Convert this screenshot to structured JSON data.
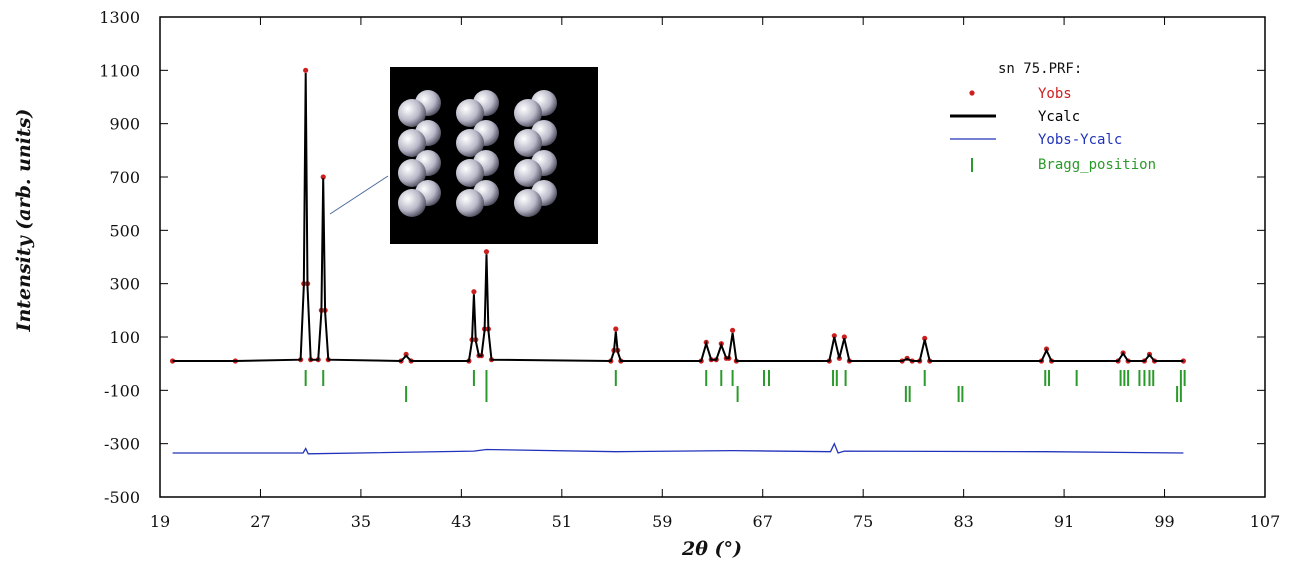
{
  "chart_data": {
    "type": "line",
    "xlabel": "2θ (°)",
    "ylabel": "Intensity (arb. units)",
    "legend_title": "sn 75.PRF:",
    "xlim": [
      19,
      107
    ],
    "xticks": [
      19,
      27,
      35,
      43,
      51,
      59,
      67,
      75,
      83,
      91,
      99,
      107
    ],
    "ylim": [
      -500,
      1300
    ],
    "yticks": [
      -500,
      -300,
      -100,
      100,
      300,
      500,
      700,
      900,
      1100,
      1300
    ],
    "series": [
      {
        "name": "Yobs",
        "color": "#cc2020",
        "style": "points",
        "x": [
          20,
          25,
          30.2,
          30.45,
          30.6,
          30.75,
          31.0,
          31.6,
          31.85,
          32.0,
          32.15,
          32.4,
          38.2,
          38.6,
          39.0,
          43.6,
          43.85,
          44.0,
          44.15,
          44.4,
          44.6,
          44.85,
          45.0,
          45.15,
          45.4,
          54.9,
          55.15,
          55.3,
          55.45,
          55.7,
          62.1,
          62.5,
          62.9,
          63.3,
          63.7,
          64.1,
          64.3,
          64.6,
          64.9,
          72.3,
          72.7,
          73.1,
          73.5,
          73.9,
          78.1,
          78.5,
          78.9,
          79.5,
          79.9,
          80.3,
          89.2,
          89.6,
          90.0,
          95.3,
          95.7,
          96.1,
          97.4,
          97.8,
          98.2,
          100.5
        ],
        "values": [
          10,
          10,
          15,
          300,
          1100,
          300,
          15,
          15,
          200,
          700,
          200,
          15,
          10,
          35,
          10,
          10,
          90,
          270,
          90,
          30,
          30,
          130,
          420,
          130,
          15,
          10,
          50,
          130,
          50,
          10,
          10,
          80,
          15,
          15,
          75,
          20,
          20,
          125,
          10,
          10,
          105,
          20,
          100,
          10,
          10,
          20,
          10,
          10,
          95,
          10,
          10,
          55,
          10,
          10,
          40,
          10,
          10,
          35,
          10,
          10
        ]
      },
      {
        "name": "Ycalc",
        "color": "#000000",
        "style": "line",
        "x": [
          20,
          25,
          30.2,
          30.45,
          30.6,
          30.75,
          31.0,
          31.6,
          31.85,
          32.0,
          32.15,
          32.4,
          38.2,
          38.6,
          39.0,
          43.6,
          43.85,
          44.0,
          44.15,
          44.4,
          44.6,
          44.85,
          45.0,
          45.15,
          45.4,
          54.9,
          55.15,
          55.3,
          55.45,
          55.7,
          62.1,
          62.5,
          62.9,
          63.3,
          63.7,
          64.1,
          64.3,
          64.6,
          64.9,
          72.3,
          72.7,
          73.1,
          73.5,
          73.9,
          78.1,
          78.5,
          78.9,
          79.5,
          79.9,
          80.3,
          89.2,
          89.6,
          90.0,
          95.3,
          95.7,
          96.1,
          97.4,
          97.8,
          98.2,
          100.5
        ],
        "values": [
          10,
          10,
          15,
          290,
          1090,
          290,
          15,
          15,
          195,
          695,
          195,
          15,
          10,
          30,
          10,
          10,
          85,
          260,
          85,
          30,
          30,
          125,
          410,
          125,
          15,
          10,
          45,
          120,
          45,
          10,
          10,
          75,
          15,
          15,
          70,
          20,
          20,
          115,
          10,
          10,
          100,
          20,
          95,
          10,
          10,
          18,
          10,
          10,
          90,
          10,
          10,
          50,
          10,
          10,
          38,
          10,
          10,
          33,
          10,
          10
        ]
      },
      {
        "name": "Yobs-Ycalc",
        "color": "#2233bb",
        "style": "line",
        "x": [
          20,
          30.4,
          30.6,
          30.8,
          44.0,
          45.0,
          55.3,
          64.6,
          72.4,
          72.7,
          73.0,
          73.5,
          89.6,
          100.5
        ],
        "values": [
          -335,
          -335,
          -318,
          -338,
          -328,
          -322,
          -330,
          -326,
          -330,
          -300,
          -335,
          -328,
          -330,
          -335
        ]
      }
    ],
    "bragg": {
      "name": "Bragg_position",
      "color": "#2a9a2a",
      "rows": [
        [
          30.6,
          32.0,
          44.0,
          45.0,
          55.3,
          62.5,
          63.7,
          64.6,
          67.1,
          67.5,
          72.6,
          72.9,
          73.6,
          79.9,
          89.5,
          89.8,
          92.0,
          95.5,
          95.8,
          96.1,
          97.0,
          97.4,
          97.8,
          98.1,
          100.3,
          100.6
        ],
        [
          38.6,
          45.0,
          65.0,
          78.4,
          78.7,
          82.6,
          82.9,
          100.0,
          100.3
        ]
      ]
    }
  }
}
